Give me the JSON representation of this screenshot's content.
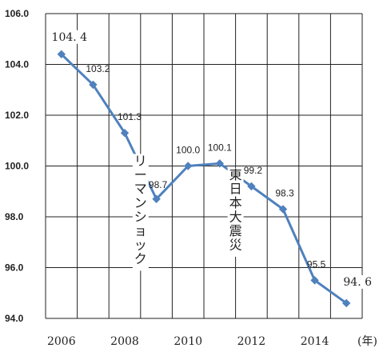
{
  "chart_data": {
    "type": "line",
    "x": [
      2006,
      2007,
      2008,
      2009,
      2010,
      2011,
      2012,
      2013,
      2014,
      2015
    ],
    "series": [
      {
        "values": [
          104.4,
          103.2,
          101.3,
          98.7,
          100.0,
          100.1,
          99.2,
          98.3,
          95.5,
          94.6
        ],
        "color": "#4f81bd",
        "marker": "diamond"
      }
    ],
    "data_labels": [
      "104. 4",
      "103.2",
      "101.3",
      "98.7",
      "100.0",
      "100.1",
      "99.2",
      "98.3",
      "95.5",
      "94. 6"
    ],
    "x_tick_labels": [
      "2006",
      "2008",
      "2010",
      "2012",
      "2014"
    ],
    "x_tick_values": [
      2006,
      2008,
      2010,
      2012,
      2014
    ],
    "x_unit_label": "(年)",
    "y_ticks": [
      "94.0",
      "96.0",
      "98.0",
      "100.0",
      "102.0",
      "104.0",
      "106.0"
    ],
    "y_tick_values": [
      94,
      96,
      98,
      100,
      102,
      104,
      106
    ],
    "ylim": [
      94,
      106
    ],
    "xlim": [
      2005.5,
      2015.5
    ],
    "grid": true,
    "title": "",
    "xlabel": "",
    "ylabel": "",
    "annotations": [
      {
        "text": "リーマンショック",
        "at_x": 2008.5,
        "at_y": 97.2
      },
      {
        "text": "東日本大震災",
        "at_x": 2011.5,
        "at_y": 97.2
      }
    ]
  }
}
